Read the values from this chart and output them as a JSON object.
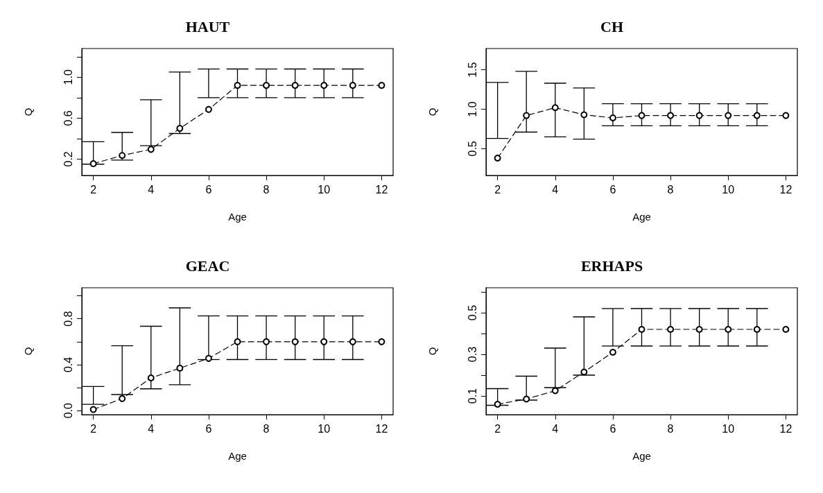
{
  "chart_data": [
    {
      "type": "line",
      "title": "HAUT",
      "xlabel": "Age",
      "ylabel": "Q",
      "marker": "circle",
      "line_style": "dashed",
      "x": [
        2,
        3,
        4,
        5,
        6,
        7,
        8,
        9,
        10,
        11,
        12
      ],
      "values": [
        0.155,
        0.235,
        0.295,
        0.5,
        0.685,
        0.92,
        0.92,
        0.92,
        0.92,
        0.92,
        0.92
      ],
      "errors": [
        [
          0.15,
          0.37
        ],
        [
          0.19,
          0.46
        ],
        [
          0.33,
          0.78
        ],
        [
          0.45,
          1.05
        ],
        [
          0.8,
          1.08
        ],
        [
          0.8,
          1.08
        ],
        [
          0.8,
          1.08
        ],
        [
          0.8,
          1.08
        ],
        [
          0.8,
          1.08
        ],
        [
          0.8,
          1.08
        ],
        null
      ],
      "xlim": [
        1.6,
        12.4
      ],
      "xticks": [
        2,
        4,
        6,
        8,
        10,
        12
      ],
      "ylim": [
        0.04,
        1.28
      ],
      "yticks": [
        0.2,
        {
          "value": 0.4,
          "label": null
        },
        0.6,
        {
          "value": 0.8,
          "label": null
        },
        {
          "value": 1,
          "label": "1.0"
        },
        {
          "value": 1.2,
          "label": null
        }
      ]
    },
    {
      "type": "line",
      "title": "CH",
      "xlabel": "Age",
      "ylabel": "Q",
      "marker": "circle",
      "line_style": "dashed",
      "x": [
        2,
        3,
        4,
        5,
        6,
        7,
        8,
        9,
        10,
        11,
        12
      ],
      "values": [
        0.38,
        0.92,
        1.02,
        0.93,
        0.89,
        0.92,
        0.92,
        0.92,
        0.92,
        0.92,
        0.92
      ],
      "errors": [
        [
          0.63,
          1.34
        ],
        [
          0.71,
          1.48
        ],
        [
          0.65,
          1.33
        ],
        [
          0.62,
          1.27
        ],
        [
          0.79,
          1.07
        ],
        [
          0.79,
          1.07
        ],
        [
          0.79,
          1.07
        ],
        [
          0.79,
          1.07
        ],
        [
          0.79,
          1.07
        ],
        [
          0.79,
          1.07
        ],
        null
      ],
      "xlim": [
        1.6,
        12.4
      ],
      "xticks": [
        2,
        4,
        6,
        8,
        10,
        12
      ],
      "ylim": [
        0.16,
        1.77
      ],
      "yticks": [
        0.5,
        {
          "value": 1,
          "label": "1.0"
        },
        1.5
      ]
    },
    {
      "type": "line",
      "title": "GEAC",
      "xlabel": "Age",
      "ylabel": "Q",
      "marker": "circle",
      "line_style": "dashed",
      "x": [
        2,
        3,
        4,
        5,
        6,
        7,
        8,
        9,
        10,
        11,
        12
      ],
      "values": [
        0.01,
        0.105,
        0.285,
        0.37,
        0.455,
        0.6,
        0.6,
        0.6,
        0.6,
        0.6,
        0.6
      ],
      "errors": [
        [
          0.055,
          0.21
        ],
        [
          0.14,
          0.565
        ],
        [
          0.19,
          0.735
        ],
        [
          0.225,
          0.895
        ],
        [
          0.445,
          0.825
        ],
        [
          0.445,
          0.825
        ],
        [
          0.445,
          0.825
        ],
        [
          0.445,
          0.825
        ],
        [
          0.445,
          0.825
        ],
        [
          0.445,
          0.825
        ],
        null
      ],
      "xlim": [
        1.6,
        12.4
      ],
      "xticks": [
        2,
        4,
        6,
        8,
        10,
        12
      ],
      "ylim": [
        -0.035,
        1.07
      ],
      "yticks": [
        {
          "value": 0,
          "label": "0.0"
        },
        {
          "value": 0.2,
          "label": null
        },
        0.4,
        {
          "value": 0.6,
          "label": null
        },
        0.8,
        {
          "value": 1.0,
          "label": null
        }
      ]
    },
    {
      "type": "line",
      "title": "ERHAPS",
      "xlabel": "Age",
      "ylabel": "Q",
      "marker": "circle",
      "line_style": "dashed",
      "x": [
        2,
        3,
        4,
        5,
        6,
        7,
        8,
        9,
        10,
        11,
        12
      ],
      "values": [
        0.06,
        0.085,
        0.125,
        0.215,
        0.31,
        0.42,
        0.42,
        0.42,
        0.42,
        0.42,
        0.42
      ],
      "errors": [
        [
          0.055,
          0.135
        ],
        [
          0.08,
          0.195
        ],
        [
          0.14,
          0.33
        ],
        [
          0.2,
          0.48
        ],
        [
          0.34,
          0.52
        ],
        [
          0.34,
          0.52
        ],
        [
          0.34,
          0.52
        ],
        [
          0.34,
          0.52
        ],
        [
          0.34,
          0.52
        ],
        [
          0.34,
          0.52
        ],
        null
      ],
      "xlim": [
        1.6,
        12.4
      ],
      "xticks": [
        2,
        4,
        6,
        8,
        10,
        12
      ],
      "ylim": [
        0.01,
        0.62
      ],
      "yticks": [
        0.1,
        {
          "value": 0.2,
          "label": null
        },
        0.3,
        {
          "value": 0.4,
          "label": null
        },
        0.5,
        {
          "value": 0.6,
          "label": null
        }
      ]
    }
  ]
}
